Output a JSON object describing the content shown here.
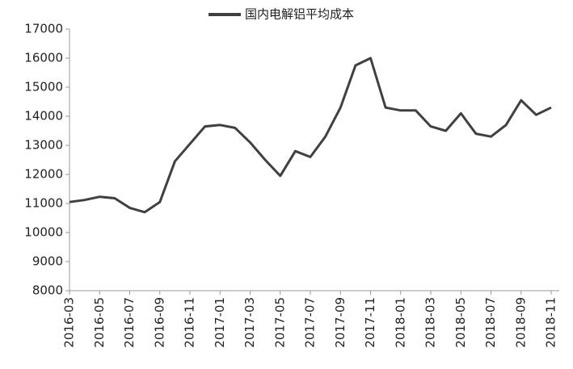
{
  "chart_data": {
    "type": "line",
    "x": [
      "2016-03",
      "2016-04",
      "2016-05",
      "2016-06",
      "2016-07",
      "2016-08",
      "2016-09",
      "2016-10",
      "2016-11",
      "2016-12",
      "2017-01",
      "2017-02",
      "2017-03",
      "2017-04",
      "2017-05",
      "2017-06",
      "2017-07",
      "2017-08",
      "2017-09",
      "2017-10",
      "2017-11",
      "2017-12",
      "2018-01",
      "2018-02",
      "2018-03",
      "2018-04",
      "2018-05",
      "2018-06",
      "2018-07",
      "2018-08",
      "2018-09",
      "2018-10",
      "2018-11"
    ],
    "series": [
      {
        "name": "国内电解铝平均成本",
        "color": "#404040",
        "values": [
          11050,
          11120,
          11230,
          11180,
          10850,
          10700,
          11050,
          12450,
          13050,
          13650,
          13700,
          13600,
          13100,
          12500,
          11950,
          12800,
          12600,
          13300,
          14300,
          15750,
          16000,
          14300,
          14200,
          14200,
          13650,
          13500,
          14100,
          13400,
          13300,
          13700,
          14550,
          14050,
          14300
        ]
      }
    ],
    "xlim": [
      "2016-03",
      "2018-11"
    ],
    "xticks": [
      "2016-03",
      "2016-05",
      "2016-07",
      "2016-09",
      "2016-11",
      "2017-01",
      "2017-03",
      "2017-05",
      "2017-07",
      "2017-09",
      "2017-11",
      "2018-01",
      "2018-03",
      "2018-05",
      "2018-07",
      "2018-09",
      "2018-11"
    ],
    "ylim": [
      8000,
      17000
    ],
    "yticks": [
      8000,
      9000,
      10000,
      11000,
      12000,
      13000,
      14000,
      15000,
      16000,
      17000
    ],
    "grid": false,
    "legend": "top"
  }
}
